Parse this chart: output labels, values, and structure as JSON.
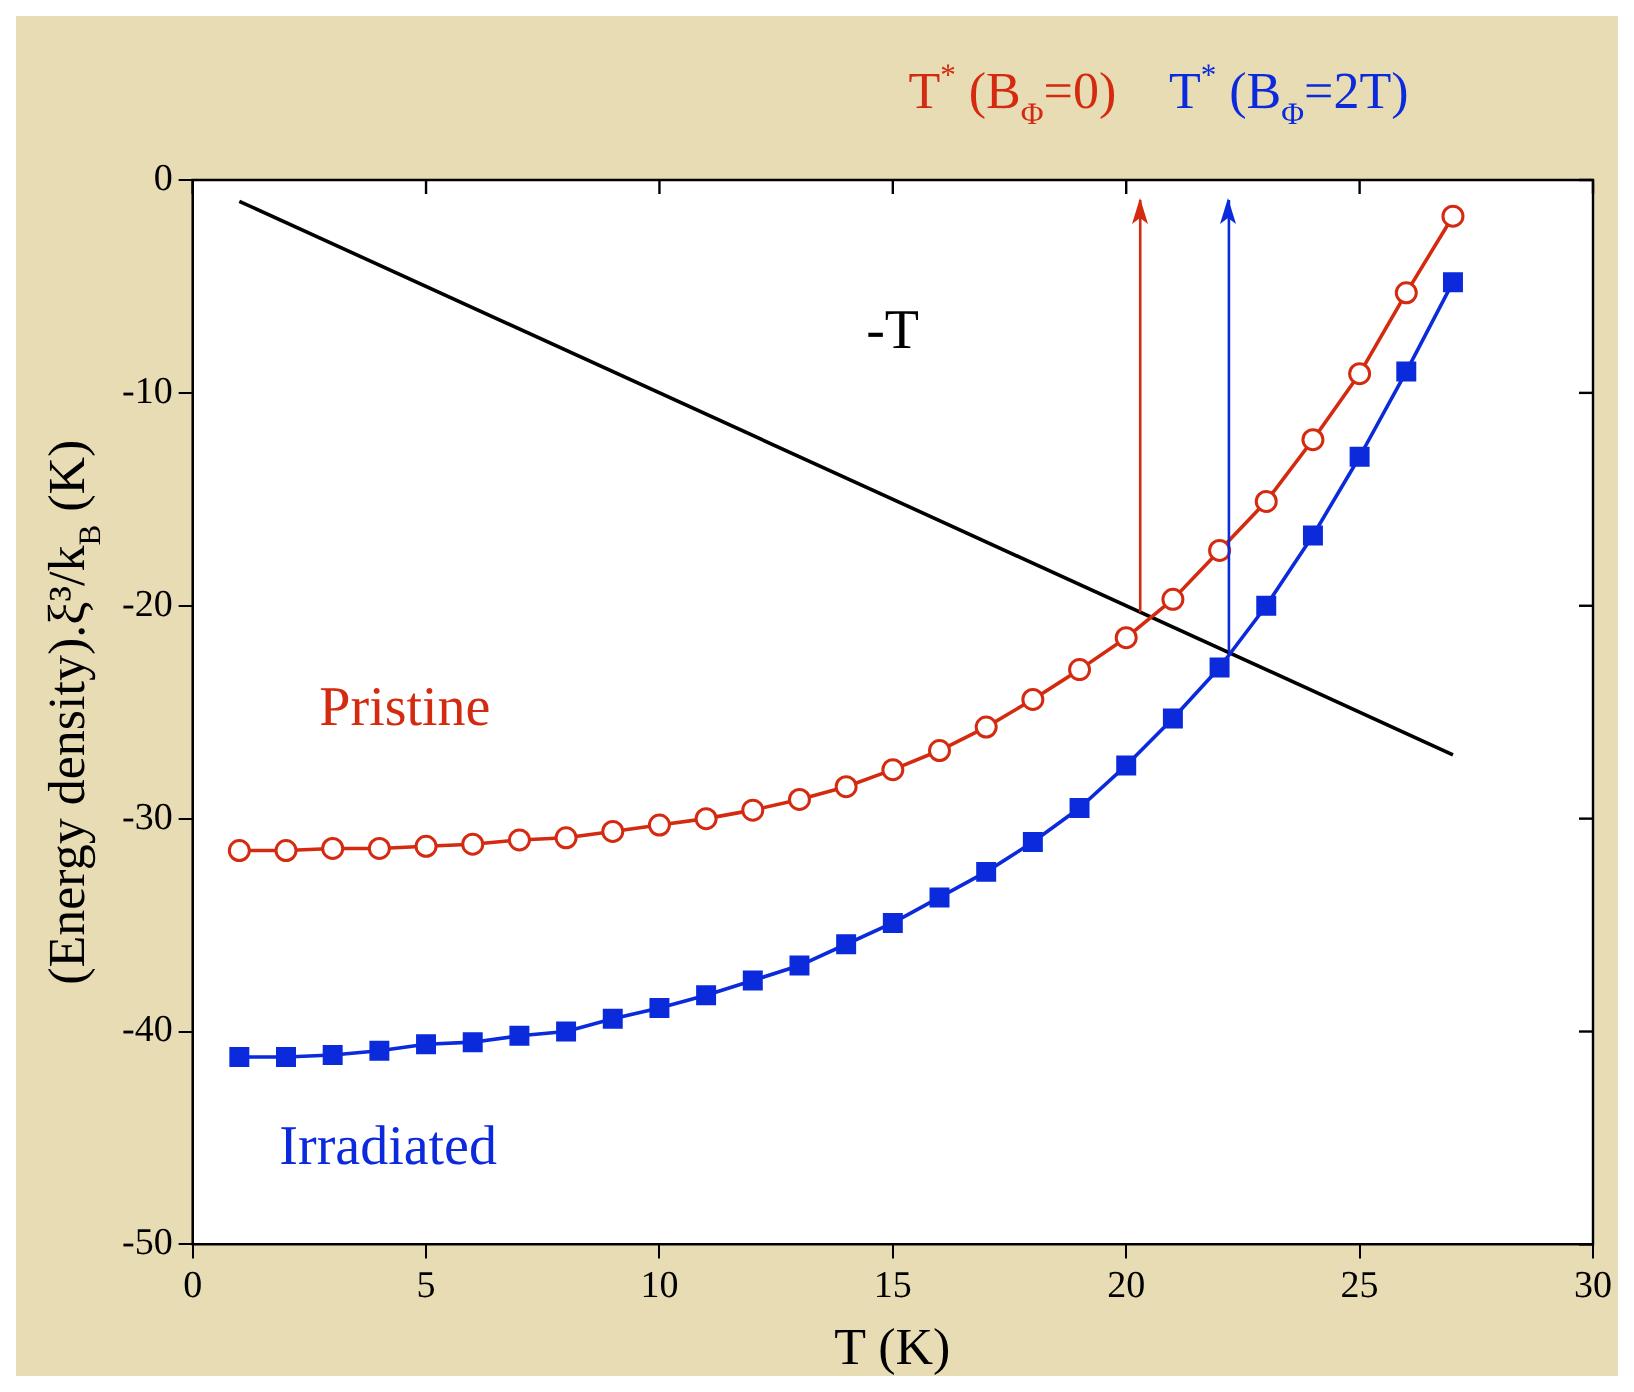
{
  "chart_data": {
    "type": "line",
    "xlabel": "T (K)",
    "ylabel": "(Energy density).ξ³/k$_{B}$ (K)",
    "xlim": [
      0,
      30
    ],
    "xticks": [
      0,
      5,
      10,
      15,
      20,
      25,
      30
    ],
    "ylim": [
      -50,
      0
    ],
    "yticks": [
      -50,
      -40,
      -30,
      -20,
      -10,
      0
    ],
    "grid": false,
    "legend": false,
    "series": [
      {
        "name": "Pristine",
        "color": "#d42a10",
        "marker": "circle",
        "x": [
          1,
          2,
          3,
          4,
          5,
          6,
          7,
          8,
          9,
          10,
          11,
          12,
          13,
          14,
          15,
          16,
          17,
          18,
          19,
          20,
          21,
          22,
          23,
          24,
          25,
          26,
          27
        ],
        "values": [
          -31.5,
          -31.5,
          -31.4,
          -31.4,
          -31.3,
          -31.2,
          -31.0,
          -30.9,
          -30.6,
          -30.3,
          -30.0,
          -29.6,
          -29.1,
          -28.5,
          -27.7,
          -26.8,
          -25.7,
          -24.4,
          -23.0,
          -21.5,
          -19.7,
          -17.4,
          -15.1,
          -12.2,
          -9.1,
          -5.3,
          -1.7
        ]
      },
      {
        "name": "Irradiated",
        "color": "#0a2adc",
        "marker": "square",
        "x": [
          1,
          2,
          3,
          4,
          5,
          6,
          7,
          8,
          9,
          10,
          11,
          12,
          13,
          14,
          15,
          16,
          17,
          18,
          19,
          20,
          21,
          22,
          23,
          24,
          25,
          26,
          27
        ],
        "values": [
          -41.2,
          -41.2,
          -41.1,
          -40.9,
          -40.6,
          -40.5,
          -40.2,
          -40.0,
          -39.4,
          -38.9,
          -38.3,
          -37.6,
          -36.9,
          -35.9,
          -34.9,
          -33.7,
          -32.5,
          -31.1,
          -29.5,
          -27.5,
          -25.3,
          -22.9,
          -20.0,
          -16.7,
          -13.0,
          -9.0,
          -4.8
        ]
      },
      {
        "name": "-T",
        "color": "#000000",
        "marker": "none",
        "x": [
          1,
          27
        ],
        "values": [
          -1,
          -27
        ]
      }
    ],
    "ref_lines": [
      {
        "axis": "x",
        "value": 20.3,
        "color": "#d42a10"
      },
      {
        "axis": "x",
        "value": 22.2,
        "color": "#0a2adc"
      }
    ],
    "annotations": [
      "T$^{*}$ (B$_{Φ}$=0)",
      "T$^{*}$ (B$_{Φ}$=2T)"
    ]
  }
}
